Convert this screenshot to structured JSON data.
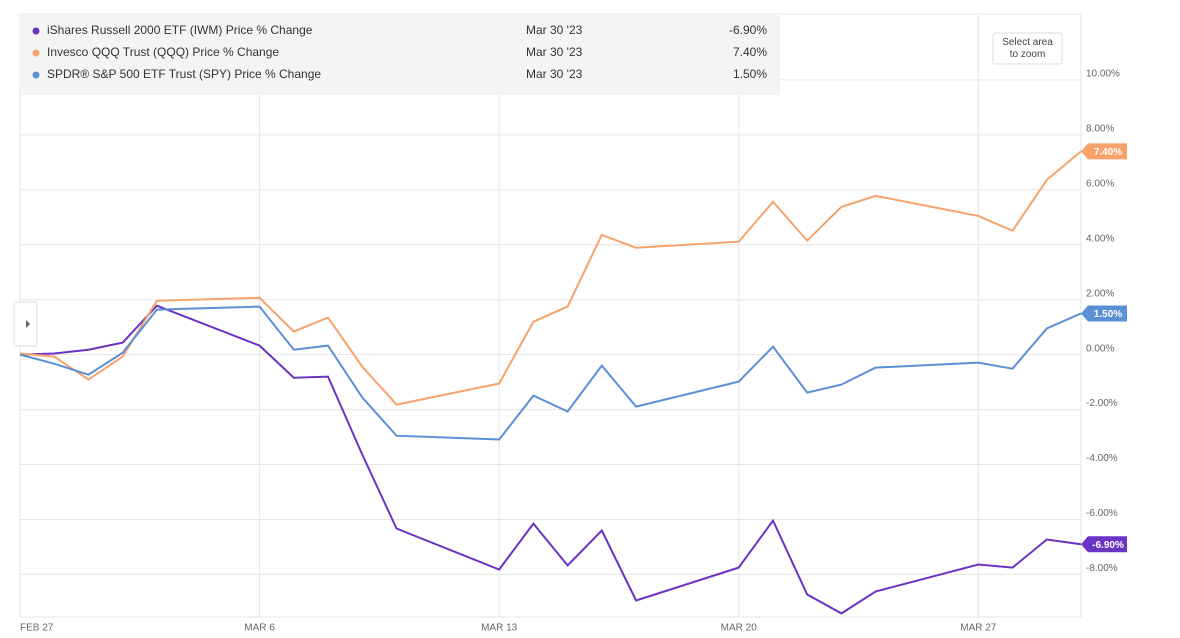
{
  "chart_data": {
    "type": "line",
    "legend_date": "Mar 30 '23",
    "zoom_button": "Select area to zoom",
    "x": [
      "2023-02-27",
      "2023-02-28",
      "2023-03-01",
      "2023-03-02",
      "2023-03-03",
      "2023-03-06",
      "2023-03-07",
      "2023-03-08",
      "2023-03-09",
      "2023-03-10",
      "2023-03-13",
      "2023-03-14",
      "2023-03-15",
      "2023-03-16",
      "2023-03-17",
      "2023-03-20",
      "2023-03-21",
      "2023-03-22",
      "2023-03-23",
      "2023-03-24",
      "2023-03-27",
      "2023-03-28",
      "2023-03-29",
      "2023-03-30"
    ],
    "xlim": [
      "2023-02-27",
      "2023-03-30"
    ],
    "xticks": [
      {
        "value": "2023-02-27",
        "label": "FEB 27"
      },
      {
        "value": "2023-03-06",
        "label": "MAR 6"
      },
      {
        "value": "2023-03-13",
        "label": "MAR 13"
      },
      {
        "value": "2023-03-20",
        "label": "MAR 20"
      },
      {
        "value": "2023-03-27",
        "label": "MAR 27"
      }
    ],
    "ylim": [
      -9.55,
      12.4
    ],
    "yticks": [
      {
        "value": -8,
        "label": "-8.00%"
      },
      {
        "value": -6,
        "label": "-6.00%"
      },
      {
        "value": -4,
        "label": "-4.00%"
      },
      {
        "value": -2,
        "label": "-2.00%"
      },
      {
        "value": 0,
        "label": "0.00%"
      },
      {
        "value": 2,
        "label": "2.00%"
      },
      {
        "value": 4,
        "label": "4.00%"
      },
      {
        "value": 6,
        "label": "6.00%"
      },
      {
        "value": 8,
        "label": "8.00%"
      },
      {
        "value": 10,
        "label": "10.00%"
      }
    ],
    "grid": true,
    "series": [
      {
        "name": "iShares Russell 2000 ETF (IWM) Price % Change",
        "color": "#6b33c4",
        "end_label": "-6.90%",
        "values": [
          0,
          0.04,
          0.18,
          0.44,
          1.78,
          0.33,
          -0.84,
          -0.8,
          -3.64,
          -6.33,
          -7.82,
          -6.15,
          -7.67,
          -6.4,
          -8.95,
          -7.75,
          -6.04,
          -8.73,
          -9.42,
          -8.62,
          -7.64,
          -7.75,
          -6.73,
          -6.9
        ]
      },
      {
        "name": "Invesco QQQ Trust (QQQ) Price % Change",
        "color": "#f5a36b",
        "end_label": "7.40%",
        "values": [
          0.04,
          -0.07,
          -0.91,
          -0.07,
          1.96,
          2.07,
          0.84,
          1.35,
          -0.44,
          -1.82,
          -1.05,
          1.2,
          1.75,
          4.36,
          3.89,
          4.11,
          5.56,
          4.15,
          5.38,
          5.78,
          5.05,
          4.51,
          6.36,
          7.4
        ]
      },
      {
        "name": "SPDR® S&P 500 ETF Trust (SPY) Price % Change",
        "color": "#5b8fd6",
        "end_label": "1.50%",
        "values": [
          0,
          -0.33,
          -0.73,
          0.07,
          1.64,
          1.75,
          0.18,
          0.33,
          -1.56,
          -2.95,
          -3.09,
          -1.49,
          -2.07,
          -0.4,
          -1.89,
          -0.98,
          0.29,
          -1.38,
          -1.09,
          -0.47,
          -0.29,
          -0.51,
          0.95,
          1.5
        ]
      }
    ]
  }
}
